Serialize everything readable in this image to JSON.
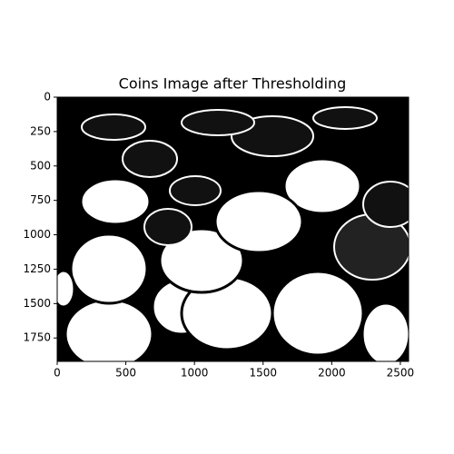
{
  "chart_data": {
    "type": "image",
    "title": "Coins Image after Thresholding",
    "xlim": [
      0,
      2560
    ],
    "ylim": [
      1920,
      0
    ],
    "xticks": [
      0,
      500,
      1000,
      1500,
      2000,
      2500
    ],
    "yticks": [
      0,
      250,
      500,
      750,
      1000,
      1250,
      1500,
      1750
    ]
  }
}
